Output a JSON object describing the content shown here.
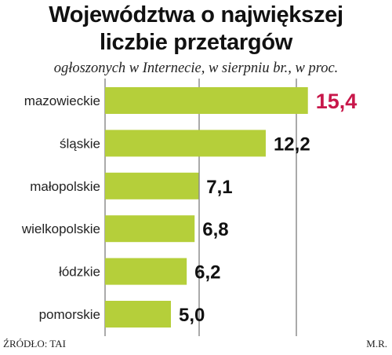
{
  "header": {
    "title_line1": "Województwa o największej",
    "title_line2": "liczbie przetargów",
    "subtitle": "ogłoszonych w Internecie, w sierpniu br., w proc."
  },
  "chart_data": {
    "type": "bar",
    "orientation": "horizontal",
    "categories": [
      "mazowieckie",
      "śląskie",
      "małopolskie",
      "wielkopolskie",
      "łódzkie",
      "pomorskie"
    ],
    "values": [
      15.4,
      12.2,
      7.1,
      6.8,
      6.2,
      5.0
    ],
    "value_labels": [
      "15,4",
      "12,2",
      "7,1",
      "6,8",
      "6,2",
      "5,0"
    ],
    "highlight_index": 0,
    "xlim": [
      0,
      20
    ],
    "grid": true,
    "colors": {
      "bar": "#b5cf3a",
      "highlight_text": "#c8174a",
      "grid": "#555555"
    }
  },
  "footer": {
    "source": "ŹRÓDŁO: TAI",
    "author": "M.R."
  }
}
